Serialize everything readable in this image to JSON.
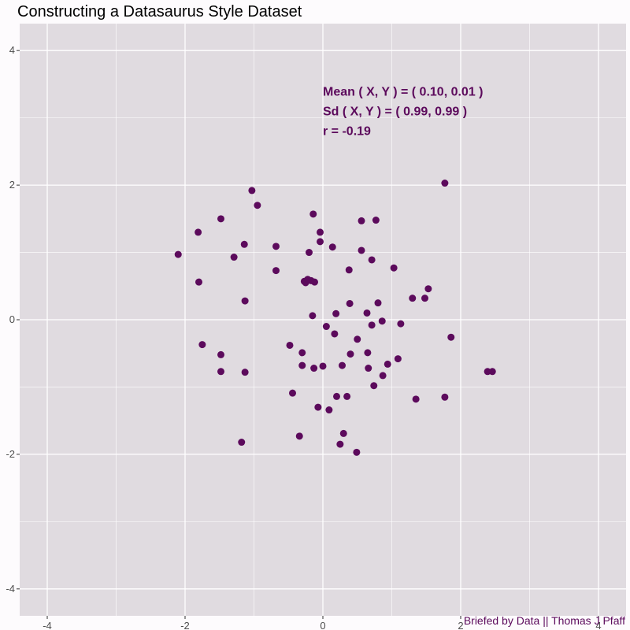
{
  "chart_data": {
    "type": "scatter",
    "title": "Constructing a Datasaurus Style Dataset",
    "caption": "Briefed by Data || Thomas J Pfaff",
    "xlabel": "",
    "ylabel": "",
    "xlim": [
      -4.4,
      4.4
    ],
    "ylim": [
      -4.4,
      4.4
    ],
    "x_ticks": [
      -4,
      -2,
      0,
      2,
      4
    ],
    "y_ticks": [
      -4,
      -2,
      0,
      2,
      4
    ],
    "grid": true,
    "point_color": "#5c0a5c",
    "panel_color": "#e0dbe0",
    "annotations": [
      "Mean ( X, Y ) = ( 0.10, 0.01 )",
      "Sd ( X, Y ) = ( 0.99, 0.99 )",
      "r = -0.19"
    ],
    "points": [
      [
        -2.1,
        0.97
      ],
      [
        -1.81,
        1.3
      ],
      [
        -1.8,
        0.56
      ],
      [
        -1.75,
        -0.37
      ],
      [
        -1.48,
        1.5
      ],
      [
        -1.48,
        -0.52
      ],
      [
        -1.48,
        -0.77
      ],
      [
        -1.29,
        0.93
      ],
      [
        -1.18,
        -1.82
      ],
      [
        -1.14,
        1.12
      ],
      [
        -1.13,
        0.28
      ],
      [
        -1.13,
        -0.78
      ],
      [
        -1.03,
        1.92
      ],
      [
        -0.95,
        1.7
      ],
      [
        -0.68,
        1.09
      ],
      [
        -0.68,
        0.73
      ],
      [
        -0.48,
        -0.38
      ],
      [
        -0.44,
        -1.09
      ],
      [
        -0.34,
        -1.73
      ],
      [
        -0.3,
        -0.49
      ],
      [
        -0.3,
        -0.68
      ],
      [
        -0.27,
        0.57
      ],
      [
        -0.25,
        0.55
      ],
      [
        -0.22,
        0.6
      ],
      [
        -0.2,
        1.0
      ],
      [
        -0.17,
        0.58
      ],
      [
        -0.15,
        0.06
      ],
      [
        -0.14,
        1.57
      ],
      [
        -0.13,
        -0.72
      ],
      [
        -0.12,
        0.56
      ],
      [
        -0.07,
        -1.3
      ],
      [
        -0.04,
        1.3
      ],
      [
        -0.04,
        1.16
      ],
      [
        0.0,
        -0.69
      ],
      [
        0.05,
        -0.1
      ],
      [
        0.09,
        -1.34
      ],
      [
        0.14,
        1.08
      ],
      [
        0.17,
        -0.21
      ],
      [
        0.19,
        0.09
      ],
      [
        0.2,
        -1.14
      ],
      [
        0.25,
        -1.85
      ],
      [
        0.28,
        -0.68
      ],
      [
        0.3,
        -1.69
      ],
      [
        0.35,
        -1.14
      ],
      [
        0.38,
        0.74
      ],
      [
        0.39,
        0.24
      ],
      [
        0.4,
        -0.51
      ],
      [
        0.49,
        -1.97
      ],
      [
        0.5,
        -0.29
      ],
      [
        0.56,
        1.47
      ],
      [
        0.56,
        1.03
      ],
      [
        0.64,
        0.1
      ],
      [
        0.65,
        -0.49
      ],
      [
        0.66,
        -0.72
      ],
      [
        0.71,
        -0.08
      ],
      [
        0.71,
        0.89
      ],
      [
        0.74,
        -0.98
      ],
      [
        0.77,
        1.48
      ],
      [
        0.8,
        0.25
      ],
      [
        0.86,
        -0.02
      ],
      [
        0.87,
        -0.83
      ],
      [
        0.94,
        -0.66
      ],
      [
        1.03,
        0.77
      ],
      [
        1.09,
        -0.58
      ],
      [
        1.13,
        -0.06
      ],
      [
        1.3,
        0.32
      ],
      [
        1.35,
        -1.18
      ],
      [
        1.48,
        0.32
      ],
      [
        1.53,
        0.46
      ],
      [
        1.77,
        2.03
      ],
      [
        1.77,
        -1.15
      ],
      [
        1.86,
        -0.26
      ],
      [
        2.39,
        -0.77
      ],
      [
        2.46,
        -0.77
      ]
    ]
  }
}
